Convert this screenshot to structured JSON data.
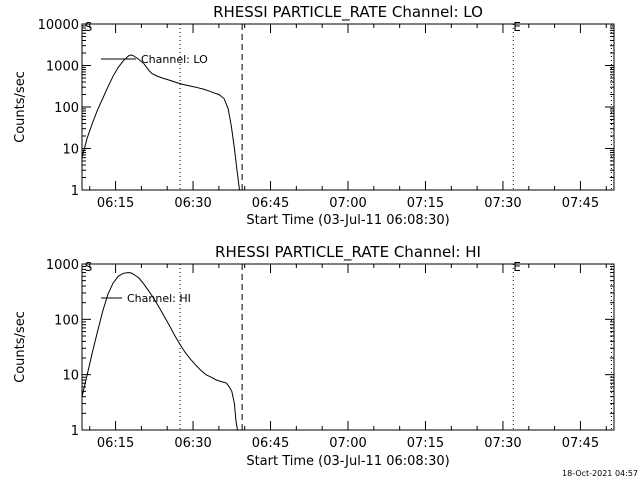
{
  "timestamp": "18-Oct-2021 04:57",
  "chart_data": [
    {
      "type": "line",
      "title": "RHESSI PARTICLE_RATE Channel: LO",
      "xlabel": "Start Time (03-Jul-11 06:08:30)",
      "ylabel": "Counts/sec",
      "yscale": "log",
      "ylim": [
        1,
        10000
      ],
      "xlim_minutes": [
        368.5,
        471.5
      ],
      "x_ticks": [
        {
          "label": "06:15",
          "minute": 375
        },
        {
          "label": "06:30",
          "minute": 390
        },
        {
          "label": "06:45",
          "minute": 405
        },
        {
          "label": "07:00",
          "minute": 420
        },
        {
          "label": "07:15",
          "minute": 435
        },
        {
          "label": "07:30",
          "minute": 450
        },
        {
          "label": "07:45",
          "minute": 465
        }
      ],
      "y_ticks": [
        {
          "label": "1",
          "value": 1
        },
        {
          "label": "10",
          "value": 10
        },
        {
          "label": "100",
          "value": 100
        },
        {
          "label": "1000",
          "value": 1000
        },
        {
          "label": "10000",
          "value": 10000
        }
      ],
      "legend": {
        "label": "Channel: LO",
        "position": "top-left"
      },
      "vlines": [
        {
          "minute": 387.5,
          "style": "dotted"
        },
        {
          "minute": 399.5,
          "style": "dashed"
        },
        {
          "minute": 452.0,
          "style": "dotted"
        },
        {
          "minute": 471.0,
          "style": "dotted"
        }
      ],
      "markers": [
        {
          "label": "S",
          "minute": 369.0
        },
        {
          "label": "E",
          "minute": 452.0
        }
      ],
      "series": [
        {
          "x_minutes": [
            368.5,
            369.5,
            370.5,
            371.5,
            372.5,
            373.5,
            374.5,
            375.5,
            376.5,
            377.5,
            378.0,
            378.5,
            379.5,
            380.5,
            381.5,
            382.0,
            383.0,
            384.0,
            385.0,
            386.0,
            387.0,
            388.0,
            389.0,
            390.0,
            391.0,
            392.0,
            393.0,
            394.0,
            395.0,
            396.0,
            396.8,
            397.4,
            398.0,
            398.5,
            399.0
          ],
          "y": [
            6,
            18,
            40,
            85,
            160,
            300,
            550,
            900,
            1300,
            1700,
            1800,
            1700,
            1400,
            1100,
            750,
            650,
            560,
            500,
            460,
            420,
            380,
            350,
            330,
            310,
            290,
            270,
            245,
            220,
            200,
            160,
            90,
            35,
            10,
            3,
            1
          ]
        }
      ]
    },
    {
      "type": "line",
      "title": "RHESSI PARTICLE_RATE Channel: HI",
      "xlabel": "Start Time (03-Jul-11 06:08:30)",
      "ylabel": "Counts/sec",
      "yscale": "log",
      "ylim": [
        1,
        1000
      ],
      "xlim_minutes": [
        368.5,
        471.5
      ],
      "x_ticks": [
        {
          "label": "06:15",
          "minute": 375
        },
        {
          "label": "06:30",
          "minute": 390
        },
        {
          "label": "06:45",
          "minute": 405
        },
        {
          "label": "07:00",
          "minute": 420
        },
        {
          "label": "07:15",
          "minute": 435
        },
        {
          "label": "07:30",
          "minute": 450
        },
        {
          "label": "07:45",
          "minute": 465
        }
      ],
      "y_ticks": [
        {
          "label": "1",
          "value": 1
        },
        {
          "label": "10",
          "value": 10
        },
        {
          "label": "100",
          "value": 100
        },
        {
          "label": "1000",
          "value": 1000
        }
      ],
      "legend": {
        "label": "Channel: HI",
        "position": "top-left"
      },
      "vlines": [
        {
          "minute": 387.5,
          "style": "dotted"
        },
        {
          "minute": 399.5,
          "style": "dashed"
        },
        {
          "minute": 452.0,
          "style": "dotted"
        },
        {
          "minute": 471.0,
          "style": "dotted"
        }
      ],
      "markers": [
        {
          "label": "S",
          "minute": 369.0
        },
        {
          "label": "E",
          "minute": 452.0
        }
      ],
      "series": [
        {
          "x_minutes": [
            368.5,
            369.5,
            370.5,
            371.5,
            372.5,
            373.5,
            374.5,
            375.5,
            376.5,
            377.5,
            378.0,
            378.5,
            379.5,
            380.5,
            381.5,
            382.5,
            383.5,
            384.5,
            385.5,
            386.5,
            387.5,
            388.5,
            389.5,
            390.5,
            391.5,
            392.5,
            393.5,
            394.5,
            395.5,
            396.5,
            397.0,
            397.5,
            398.0,
            398.3,
            398.6
          ],
          "y": [
            4,
            10,
            25,
            60,
            140,
            280,
            450,
            600,
            680,
            700,
            690,
            650,
            560,
            430,
            320,
            230,
            160,
            110,
            75,
            50,
            35,
            25,
            19,
            15,
            12,
            10,
            9,
            8,
            7.5,
            7,
            6,
            5,
            3,
            1.5,
            1
          ]
        }
      ]
    }
  ]
}
